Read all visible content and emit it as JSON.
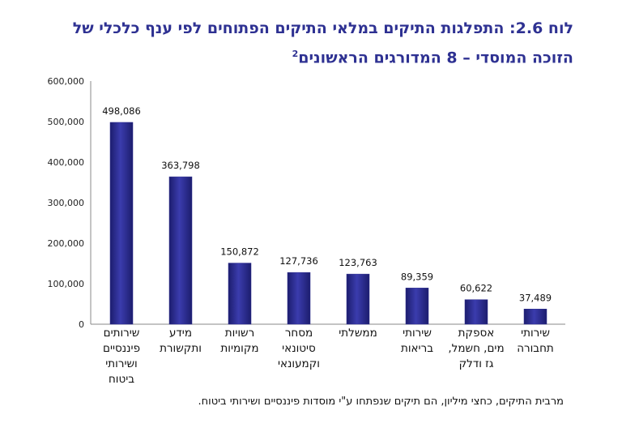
{
  "title": {
    "line1_prefix": "לוח",
    "line1_number": "2.6:",
    "line1_text": "התפלגות התיקים במלאי התיקים הפתוחים לפי ענף כלכלי של",
    "line2_text": "הזוכה המוסדי – 8 המדורגים הראשונים",
    "superscript": "2"
  },
  "chart_data": {
    "type": "bar",
    "categories": [
      "שירותים\nפיננסיים\nושירותי\nביטוח",
      "מידע\nותקשורת",
      "רשויות\nמקומיות",
      "מסחר\nסיטונאי\nוקמעונאי",
      "ממשלתי",
      "שירותי\nבריאות",
      "אספקת\nמים, חשמל,\nגז ודלק",
      "שירותי\nתחבורה"
    ],
    "values": [
      498086,
      363798,
      150872,
      127736,
      123763,
      89359,
      60622,
      37489
    ],
    "data_labels": [
      "498,086",
      "363,798",
      "150,872",
      "127,736",
      "123,763",
      "89,359",
      "60,622",
      "37,489"
    ],
    "yticks": [
      "0",
      "100,000",
      "200,000",
      "300,000",
      "400,000",
      "500,000",
      "600,000"
    ],
    "ylim": [
      0,
      600000
    ],
    "bar_color": "#2e2f8f",
    "grid": false
  },
  "footnote": "מרבית התיקים, כחצי מיליון, הם תיקים שנפתחו ע\"י מוסדות פיננסיים ושירותי ביטוח."
}
